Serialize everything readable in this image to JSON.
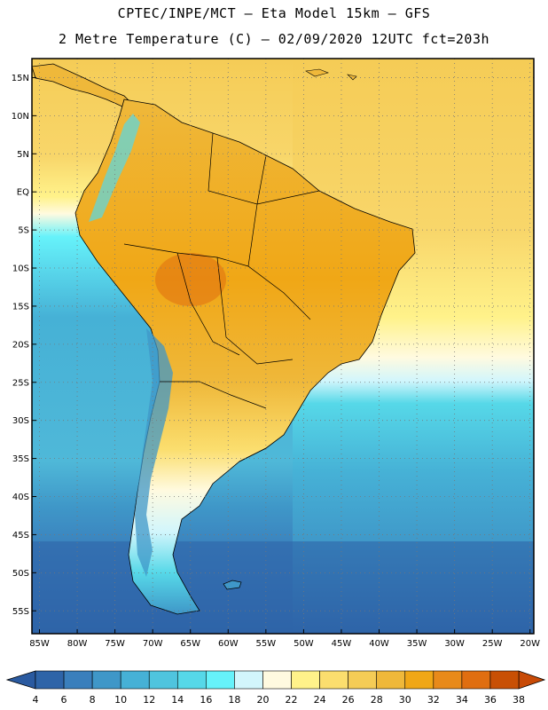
{
  "header": {
    "line1": "CPTEC/INPE/MCT –  Eta Model 15km – GFS",
    "line2": "2 Metre Temperature (C) – 02/09/2020 12UTC fct=203h"
  },
  "map": {
    "lon_range": [
      -86,
      -19.5
    ],
    "lat_range": [
      -58,
      17.5
    ],
    "lat_ticks": [
      {
        "value": 15,
        "label": "15N"
      },
      {
        "value": 10,
        "label": "10N"
      },
      {
        "value": 5,
        "label": "5N"
      },
      {
        "value": 0,
        "label": "EQ"
      },
      {
        "value": -5,
        "label": "5S"
      },
      {
        "value": -10,
        "label": "10S"
      },
      {
        "value": -15,
        "label": "15S"
      },
      {
        "value": -20,
        "label": "20S"
      },
      {
        "value": -25,
        "label": "25S"
      },
      {
        "value": -30,
        "label": "30S"
      },
      {
        "value": -35,
        "label": "35S"
      },
      {
        "value": -40,
        "label": "40S"
      },
      {
        "value": -45,
        "label": "45S"
      },
      {
        "value": -50,
        "label": "50S"
      },
      {
        "value": -55,
        "label": "55S"
      }
    ],
    "lon_ticks": [
      {
        "value": -85,
        "label": "85W"
      },
      {
        "value": -80,
        "label": "80W"
      },
      {
        "value": -75,
        "label": "75W"
      },
      {
        "value": -70,
        "label": "70W"
      },
      {
        "value": -65,
        "label": "65W"
      },
      {
        "value": -60,
        "label": "60W"
      },
      {
        "value": -55,
        "label": "55W"
      },
      {
        "value": -50,
        "label": "50W"
      },
      {
        "value": -45,
        "label": "45W"
      },
      {
        "value": -40,
        "label": "40W"
      },
      {
        "value": -35,
        "label": "35W"
      },
      {
        "value": -30,
        "label": "30W"
      },
      {
        "value": -25,
        "label": "25W"
      },
      {
        "value": -20,
        "label": "20W"
      }
    ]
  },
  "colorbar": {
    "labels": [
      "4",
      "6",
      "8",
      "10",
      "12",
      "14",
      "16",
      "18",
      "20",
      "22",
      "24",
      "26",
      "28",
      "30",
      "32",
      "34",
      "36",
      "38"
    ],
    "colors": [
      "#2e64a8",
      "#3a7fbc",
      "#3f97c8",
      "#46b1d6",
      "#4fc4de",
      "#56d8e8",
      "#66f2fa",
      "#d2f6fc",
      "#fffae0",
      "#fff28a",
      "#fbde6e",
      "#f5cc56",
      "#efb83a",
      "#f0a716",
      "#e88a1a",
      "#e06e10",
      "#c85005"
    ],
    "under_color": "#2a5aa0",
    "over_color": "#c84a06"
  }
}
